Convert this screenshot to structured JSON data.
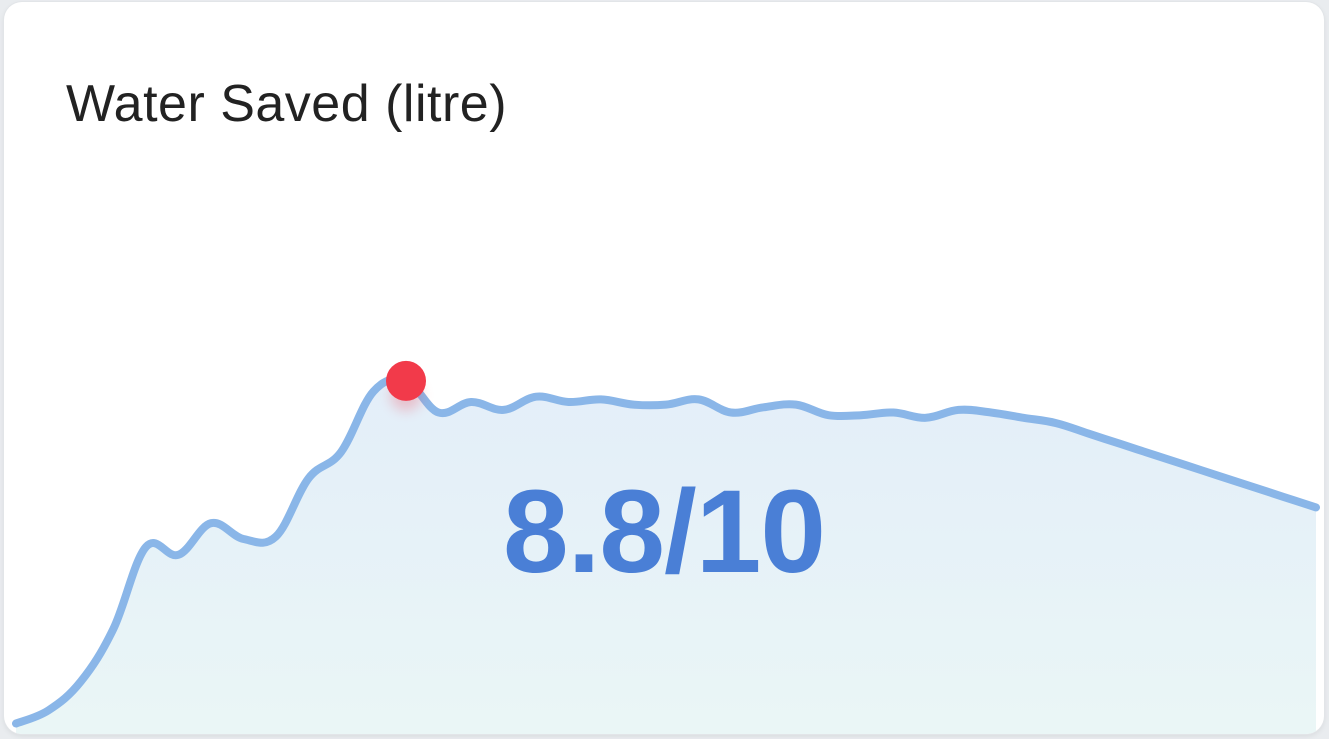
{
  "card": {
    "title": "Water Saved (litre)",
    "score": "8.8/10"
  },
  "colors": {
    "line": "#8ab6e8",
    "fill_top": "#e3eef9",
    "fill_bottom": "#eaf6f6",
    "highlight": "#f23a4a",
    "score": "#4a7fd6"
  },
  "chart_data": {
    "type": "area",
    "title": "Water Saved (litre)",
    "xlabel": "",
    "ylabel": "",
    "grid": false,
    "x": [
      0,
      1,
      2,
      3,
      4,
      5,
      6,
      7,
      8,
      9,
      10,
      11,
      12,
      13,
      14,
      15,
      16,
      17,
      18,
      19,
      20,
      21,
      22,
      23,
      24,
      25,
      26,
      27,
      28,
      29,
      30,
      31,
      32,
      33,
      34,
      35,
      36,
      37,
      38,
      39,
      40
    ],
    "values": [
      0.4,
      0.9,
      2.0,
      4.0,
      7.1,
      6.8,
      8.0,
      7.4,
      7.5,
      9.7,
      10.7,
      13.0,
      13.4,
      12.2,
      12.6,
      12.3,
      12.8,
      12.6,
      12.7,
      12.5,
      12.5,
      12.7,
      12.2,
      12.4,
      12.5,
      12.1,
      12.1,
      12.2,
      12.0,
      12.3,
      12.2,
      12.0,
      11.8,
      11.4,
      11.0,
      10.6,
      10.2,
      9.8,
      9.4,
      9.0,
      8.6
    ],
    "highlight_index": 12,
    "ylim": [
      0,
      20
    ]
  }
}
